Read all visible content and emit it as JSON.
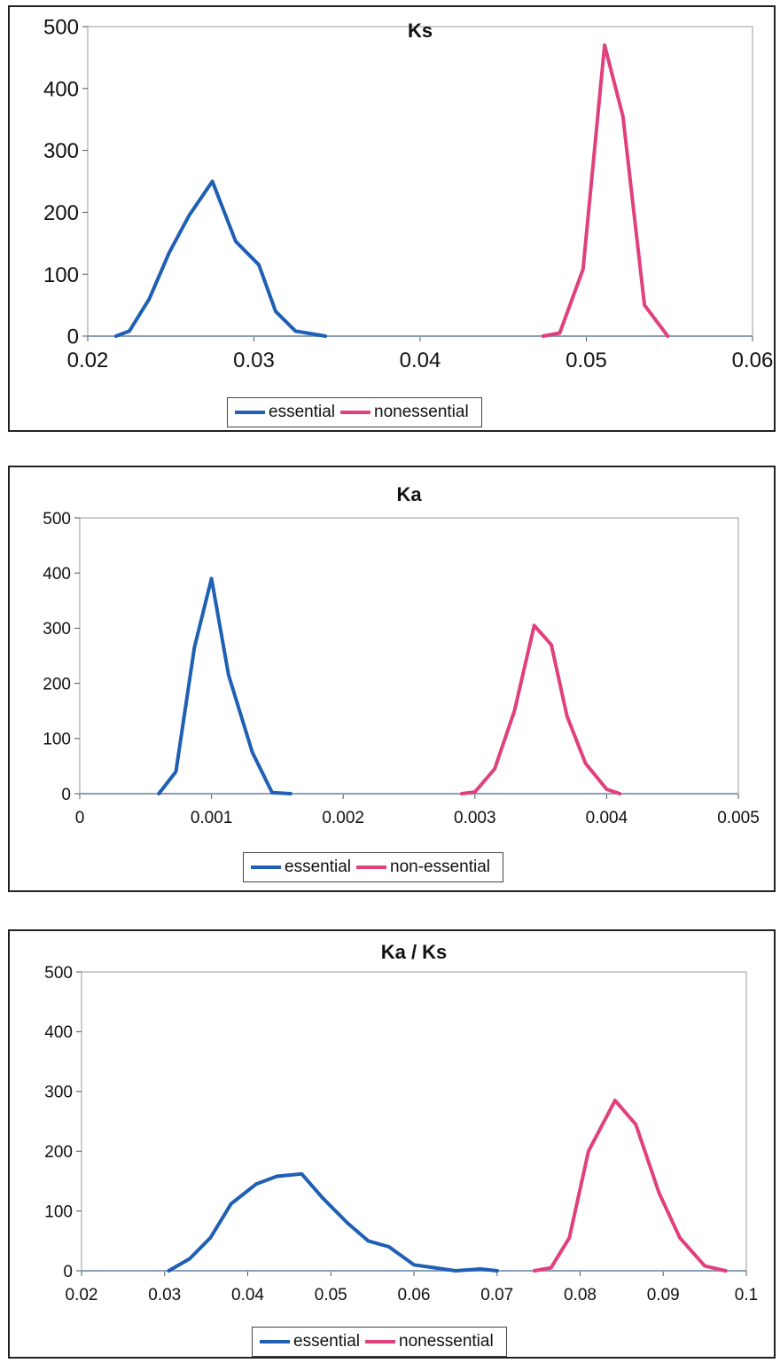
{
  "chart_data": [
    {
      "type": "line",
      "title": "Ks",
      "xlim": [
        0.02,
        0.06
      ],
      "ylim": [
        0,
        500
      ],
      "x_ticks": [
        "0.02",
        "0.03",
        "0.04",
        "0.05",
        "0.06"
      ],
      "y_ticks": [
        "0",
        "100",
        "200",
        "300",
        "400",
        "500"
      ],
      "grid": false,
      "legend": "bottom",
      "series": [
        {
          "name": "essential",
          "color": "#1f5fb4",
          "x": [
            0.0217,
            0.0225,
            0.0237,
            0.0249,
            0.0261,
            0.0275,
            0.0289,
            0.0303,
            0.0313,
            0.0325,
            0.0343
          ],
          "y": [
            0,
            8,
            60,
            135,
            195,
            250,
            153,
            115,
            40,
            8,
            0
          ]
        },
        {
          "name": "nonessential",
          "color": "#e0407d",
          "x": [
            0.0474,
            0.0484,
            0.0498,
            0.0511,
            0.0522,
            0.0535,
            0.0549
          ],
          "y": [
            0,
            5,
            108,
            470,
            355,
            50,
            0
          ]
        }
      ]
    },
    {
      "type": "line",
      "title": "Ka",
      "xlim": [
        0,
        0.005
      ],
      "ylim": [
        0,
        500
      ],
      "x_ticks": [
        "0",
        "0.001",
        "0.002",
        "0.003",
        "0.004",
        "0.005"
      ],
      "y_ticks": [
        "0",
        "100",
        "200",
        "300",
        "400",
        "500"
      ],
      "grid": false,
      "legend": "bottom",
      "series": [
        {
          "name": "essential",
          "color": "#1f5fb4",
          "x": [
            0.0006,
            0.00073,
            0.00087,
            0.001,
            0.00113,
            0.00131,
            0.00146,
            0.0016
          ],
          "y": [
            0,
            40,
            265,
            390,
            215,
            75,
            2,
            0
          ]
        },
        {
          "name": "non-essential",
          "color": "#e0407d",
          "x": [
            0.0029,
            0.003,
            0.00315,
            0.0033,
            0.00345,
            0.00358,
            0.0037,
            0.00384,
            0.004,
            0.0041
          ],
          "y": [
            0,
            3,
            45,
            150,
            305,
            270,
            140,
            55,
            8,
            0
          ]
        }
      ]
    },
    {
      "type": "line",
      "title": "Ka / Ks",
      "xlim": [
        0.02,
        0.1
      ],
      "ylim": [
        0,
        500
      ],
      "x_ticks": [
        "0.02",
        "0.03",
        "0.04",
        "0.05",
        "0.06",
        "0.07",
        "0.08",
        "0.09",
        "0.1"
      ],
      "y_ticks": [
        "0",
        "100",
        "200",
        "300",
        "400",
        "500"
      ],
      "grid": false,
      "legend": "bottom",
      "series": [
        {
          "name": "essential",
          "color": "#1f5fb4",
          "x": [
            0.0305,
            0.033,
            0.0355,
            0.038,
            0.041,
            0.0435,
            0.0465,
            0.049,
            0.052,
            0.0545,
            0.057,
            0.06,
            0.0625,
            0.065,
            0.068,
            0.07
          ],
          "y": [
            0,
            20,
            55,
            112,
            145,
            158,
            162,
            122,
            80,
            50,
            40,
            10,
            5,
            0,
            3,
            0
          ]
        },
        {
          "name": "nonessential",
          "color": "#e0407d",
          "x": [
            0.0745,
            0.0765,
            0.0787,
            0.081,
            0.0842,
            0.0867,
            0.0895,
            0.092,
            0.095,
            0.0975
          ],
          "y": [
            0,
            5,
            55,
            200,
            285,
            245,
            130,
            55,
            8,
            0
          ]
        }
      ]
    }
  ]
}
